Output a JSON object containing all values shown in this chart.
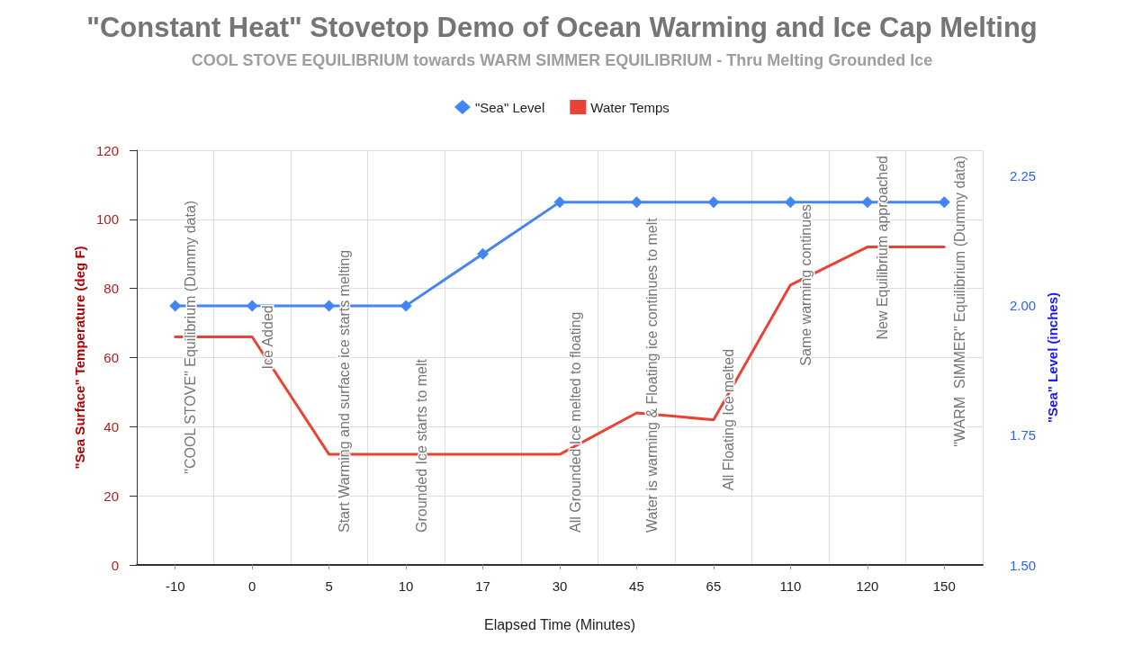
{
  "chart_data": {
    "type": "line",
    "title": "\"Constant Heat\" Stovetop Demo of Ocean Warming and Ice Cap Melting",
    "subtitle": "COOL STOVE EQUILIBRIUM towards WARM SIMMER EQUILIBRIUM - Thru Melting Grounded Ice",
    "xlabel": "Elapsed Time (Minutes)",
    "ylabel": "\"Sea Surface\" Temperature (deg F)",
    "y2label": "\"Sea\" Level (inches)",
    "categories": [
      "-10",
      "0",
      "5",
      "10",
      "17",
      "30",
      "45",
      "65",
      "110",
      "120",
      "150"
    ],
    "series": [
      {
        "name": "\"Sea\" Level",
        "color": "#4285f4",
        "axis": "y2",
        "marker": "diamond",
        "values": [
          2.0,
          2.0,
          2.0,
          2.0,
          2.1,
          2.2,
          2.2,
          2.2,
          2.2,
          2.2,
          2.2
        ]
      },
      {
        "name": "Water Temps",
        "color": "#ea4335",
        "marker": "none",
        "values": [
          66,
          66,
          32,
          32,
          32,
          32,
          44,
          42,
          81,
          92,
          92
        ]
      }
    ],
    "ylim": [
      0,
      120
    ],
    "yticks": [
      0,
      20,
      40,
      60,
      80,
      100,
      120
    ],
    "y2lim": [
      1.5,
      2.3
    ],
    "y2ticks": [
      {
        "value": 1.5,
        "label": "1.50"
      },
      {
        "value": 1.75,
        "label": "1.75"
      },
      {
        "value": 2.0,
        "label": "2.00"
      },
      {
        "value": 2.25,
        "label": "2.25"
      }
    ],
    "annotations": [
      {
        "text": "\"COOL STOVE\" Equilibrium (Dummy data)",
        "x": "-10",
        "y": 66
      },
      {
        "text": "Ice Added",
        "x": "0",
        "y": 66
      },
      {
        "text": "Start Warming and surface ice starts melting",
        "x": "5",
        "y": 32
      },
      {
        "text": "Grounded Ice starts to melt",
        "x": "10",
        "y": 32
      },
      {
        "text": "All Grounded Ice melted to floating",
        "x": "30",
        "y": 32
      },
      {
        "text": "Water is warming & Floating ice continues to melt",
        "x": "45",
        "y": 44
      },
      {
        "text": "All Floating Ice melted",
        "x": "65",
        "y": 42
      },
      {
        "text": "Same warming continues",
        "x": "110",
        "y": 81
      },
      {
        "text": "New Equilibrium approached",
        "x": "120",
        "y": 92
      },
      {
        "text": "\"WARM  SIMMER\" Equilibrium (Dummy data)",
        "x": "150",
        "y": 92
      }
    ],
    "grid": true,
    "legend": "top",
    "line_style": "solid"
  }
}
